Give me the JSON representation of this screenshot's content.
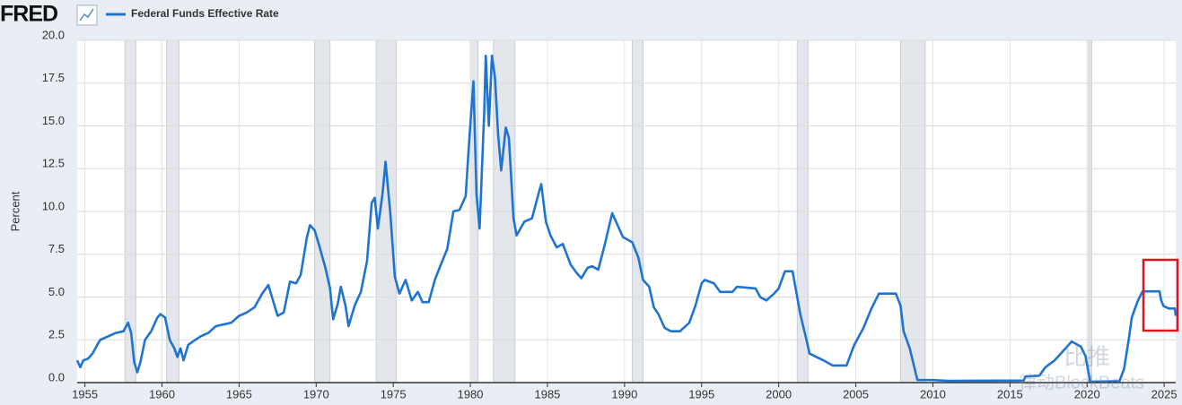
{
  "chart_data": {
    "type": "line",
    "logo": "FRED",
    "ylabel": "Percent",
    "legend": "top-left",
    "grid": true,
    "xlim": [
      1954.5,
      2025.75
    ],
    "ylim": [
      0,
      20
    ],
    "xticks": [
      1955,
      1960,
      1965,
      1970,
      1975,
      1980,
      1985,
      1990,
      1995,
      2000,
      2005,
      2010,
      2015,
      2020,
      2025
    ],
    "yticks": [
      {
        "value": 0,
        "label": "0.0"
      },
      2.5,
      {
        "value": 5,
        "label": "5.0"
      },
      7.5,
      {
        "value": 10,
        "label": "10.0"
      },
      12.5,
      {
        "value": 15,
        "label": "15.0"
      },
      17.5,
      {
        "value": 20,
        "label": "20.0"
      }
    ],
    "recession_color": "#e3e6ea",
    "recessions": [
      {
        "start": 1957.6,
        "end": 1958.3
      },
      {
        "start": 1960.3,
        "end": 1961.1
      },
      {
        "start": 1969.9,
        "end": 1970.9
      },
      {
        "start": 1973.9,
        "end": 1975.2
      },
      {
        "start": 1980.0,
        "end": 1980.5
      },
      {
        "start": 1981.5,
        "end": 1982.9
      },
      {
        "start": 1990.5,
        "end": 1991.2
      },
      {
        "start": 2001.2,
        "end": 2001.9
      },
      {
        "start": 2007.9,
        "end": 2009.5
      },
      {
        "start": 2020.1,
        "end": 2020.3
      }
    ],
    "x": [
      1954.5,
      1954.7,
      1954.9,
      1955.2,
      1955.5,
      1955.8,
      1956.0,
      1956.5,
      1957.0,
      1957.5,
      1957.8,
      1958.0,
      1958.2,
      1958.4,
      1958.6,
      1958.9,
      1959.3,
      1959.7,
      1959.9,
      1960.2,
      1960.5,
      1960.8,
      1961.0,
      1961.2,
      1961.4,
      1961.7,
      1962.0,
      1962.5,
      1963.0,
      1963.5,
      1964.0,
      1964.5,
      1965.0,
      1965.5,
      1966.0,
      1966.5,
      1966.9,
      1967.2,
      1967.5,
      1967.9,
      1968.3,
      1968.7,
      1969.0,
      1969.4,
      1969.6,
      1969.9,
      1970.2,
      1970.6,
      1970.9,
      1971.1,
      1971.4,
      1971.6,
      1971.9,
      1972.1,
      1972.5,
      1972.9,
      1973.3,
      1973.6,
      1973.8,
      1974.0,
      1974.3,
      1974.5,
      1974.8,
      1975.1,
      1975.4,
      1975.8,
      1976.2,
      1976.6,
      1976.9,
      1977.3,
      1977.7,
      1978.0,
      1978.5,
      1978.9,
      1979.3,
      1979.7,
      1979.9,
      1980.2,
      1980.4,
      1980.6,
      1980.9,
      1981.0,
      1981.2,
      1981.4,
      1981.6,
      1981.8,
      1982.0,
      1982.3,
      1982.5,
      1982.8,
      1983.0,
      1983.5,
      1984.0,
      1984.5,
      1984.6,
      1984.9,
      1985.2,
      1985.6,
      1986.0,
      1986.5,
      1986.9,
      1987.2,
      1987.6,
      1987.9,
      1988.3,
      1988.7,
      1989.2,
      1989.5,
      1989.9,
      1990.5,
      1990.9,
      1991.2,
      1991.6,
      1991.9,
      1992.2,
      1992.6,
      1993.0,
      1993.6,
      1994.2,
      1994.6,
      1995.0,
      1995.2,
      1995.8,
      1996.2,
      1997.0,
      1997.3,
      1998.5,
      1998.8,
      1999.2,
      1999.7,
      2000.0,
      2000.4,
      2000.9,
      2001.1,
      2001.4,
      2001.8,
      2002.0,
      2002.9,
      2003.5,
      2004.4,
      2004.9,
      2005.5,
      2006.0,
      2006.5,
      2007.6,
      2007.9,
      2008.1,
      2008.5,
      2008.9,
      2009.0,
      2010.0,
      2011.0,
      2015.9,
      2016.0,
      2016.9,
      2017.3,
      2017.9,
      2018.5,
      2019.0,
      2019.6,
      2019.9,
      2020.2,
      2022.1,
      2022.4,
      2022.7,
      2022.9,
      2023.3,
      2023.6,
      2024.7,
      2024.8,
      2024.95,
      2025.3,
      2025.7,
      2025.75
    ],
    "series": [
      {
        "name": "Federal Funds Effective Rate",
        "color": "#1f74d1",
        "values": [
          1.3,
          0.9,
          1.3,
          1.4,
          1.7,
          2.2,
          2.5,
          2.7,
          2.9,
          3.0,
          3.5,
          2.9,
          1.2,
          0.6,
          1.2,
          2.5,
          3.0,
          3.8,
          4.0,
          3.8,
          2.5,
          2.0,
          1.5,
          2.0,
          1.3,
          2.2,
          2.4,
          2.7,
          2.9,
          3.3,
          3.4,
          3.5,
          3.9,
          4.1,
          4.4,
          5.2,
          5.7,
          4.8,
          3.9,
          4.1,
          5.9,
          5.8,
          6.3,
          8.5,
          9.2,
          8.9,
          8.0,
          6.7,
          5.5,
          3.7,
          4.6,
          5.6,
          4.5,
          3.3,
          4.5,
          5.3,
          7.1,
          10.5,
          10.8,
          9.0,
          11.0,
          12.9,
          10.0,
          6.2,
          5.2,
          6.0,
          4.8,
          5.3,
          4.7,
          4.7,
          6.0,
          6.7,
          7.8,
          10.0,
          10.1,
          10.9,
          13.8,
          17.6,
          11.0,
          9.0,
          15.8,
          19.1,
          15.0,
          19.1,
          17.8,
          14.5,
          12.4,
          14.9,
          14.3,
          9.6,
          8.6,
          9.4,
          9.6,
          11.3,
          11.6,
          9.4,
          8.6,
          7.9,
          8.1,
          6.9,
          6.4,
          6.1,
          6.7,
          6.8,
          6.6,
          8.0,
          9.9,
          9.3,
          8.5,
          8.2,
          7.3,
          6.0,
          5.6,
          4.4,
          4.0,
          3.2,
          3.0,
          3.0,
          3.5,
          4.5,
          5.8,
          6.0,
          5.8,
          5.3,
          5.3,
          5.6,
          5.5,
          5.0,
          4.8,
          5.2,
          5.5,
          6.5,
          6.5,
          5.5,
          4.0,
          2.5,
          1.7,
          1.3,
          1.0,
          1.0,
          2.2,
          3.2,
          4.3,
          5.2,
          5.2,
          4.5,
          3.0,
          2.0,
          0.5,
          0.15,
          0.15,
          0.1,
          0.12,
          0.36,
          0.4,
          0.9,
          1.3,
          1.9,
          2.4,
          2.1,
          1.55,
          0.05,
          0.08,
          0.8,
          2.5,
          3.8,
          4.8,
          5.33,
          5.33,
          4.83,
          4.48,
          4.33,
          4.33,
          3.9
        ]
      }
    ],
    "watermark": [
      "比推",
      "律动BlockBeats"
    ]
  }
}
